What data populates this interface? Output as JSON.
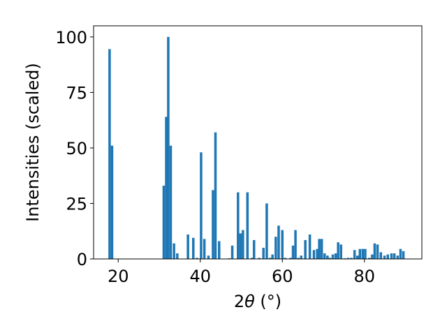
{
  "chart_data": {
    "type": "bar",
    "xlabel_prefix": "2",
    "xlabel_symbol": "θ",
    "xlabel_suffix": " (°)",
    "ylabel": "Intensities (scaled)",
    "xlim": [
      14,
      94
    ],
    "ylim": [
      0,
      105
    ],
    "xticks": [
      20,
      40,
      60,
      80
    ],
    "yticks": [
      0,
      25,
      50,
      75,
      100
    ],
    "bar_color": "#1f77b4",
    "bar_width": 0.6,
    "x": [
      17.9,
      18.5,
      31.1,
      31.7,
      32.2,
      32.8,
      33.6,
      34.4,
      37.0,
      38.3,
      39.2,
      40.2,
      41.0,
      42.0,
      43.1,
      43.7,
      44.6,
      47.1,
      47.8,
      49.2,
      49.8,
      50.4,
      51.5,
      52.6,
      53.1,
      54.4,
      55.4,
      56.2,
      57.0,
      57.6,
      58.4,
      59.1,
      60.0,
      60.7,
      62.0,
      62.6,
      63.2,
      63.9,
      64.6,
      65.6,
      66.7,
      67.7,
      68.5,
      69.0,
      69.6,
      70.3,
      71.0,
      71.6,
      72.3,
      73.0,
      73.6,
      74.3,
      75.2,
      76.0,
      76.8,
      77.6,
      78.3,
      78.9,
      79.6,
      80.2,
      81.2,
      81.9,
      82.5,
      83.2,
      84.0,
      84.9,
      85.7,
      86.6,
      87.3,
      88.1,
      88.8,
      89.5
    ],
    "values": [
      94.5,
      51,
      33,
      64,
      100,
      51,
      7,
      2.5,
      11,
      9.5,
      0.5,
      48,
      9,
      1.5,
      31,
      57,
      8,
      0.3,
      6,
      30,
      11.5,
      13,
      30,
      0.5,
      8.5,
      0.5,
      5,
      25,
      0.5,
      2,
      10,
      15,
      13,
      0.5,
      0.5,
      6,
      13,
      0.5,
      1.5,
      8.5,
      11,
      4,
      4.5,
      9,
      9,
      2.5,
      1.5,
      0.5,
      2,
      2.5,
      7.5,
      6.5,
      0.3,
      0.5,
      0.5,
      4,
      1.5,
      4.5,
      4.5,
      4.5,
      0.5,
      2,
      7,
      6.5,
      3,
      1.5,
      2,
      2.5,
      2.5,
      1.5,
      4.5,
      3.5
    ]
  }
}
